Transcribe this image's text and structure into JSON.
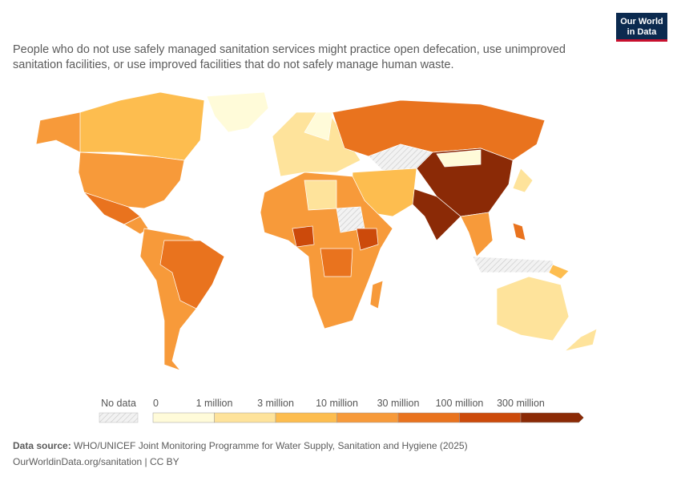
{
  "logo": {
    "line1": "Our World",
    "line2": "in Data"
  },
  "subtitle": [
    "People who do not use safely managed sanitation services might practice open defecation, use unimproved",
    "sanitation facilities, or use improved facilities that do not safely manage human waste."
  ],
  "legend": {
    "no_data": "No data",
    "labels": [
      "0",
      "1 million",
      "3 million",
      "10 million",
      "30 million",
      "100 million",
      "300 million"
    ],
    "colors": [
      "#fffbd9",
      "#fee39b",
      "#fdbd4f",
      "#f79a3a",
      "#e9731e",
      "#cc4a0b",
      "#8b2a06"
    ]
  },
  "footer": {
    "source_label": "Data source:",
    "source": "WHO/UNICEF Joint Monitoring Programme for Water Supply, Sanitation and Hygiene (2025)",
    "url": "OurWorldinData.org/sanitation | CC BY"
  }
}
